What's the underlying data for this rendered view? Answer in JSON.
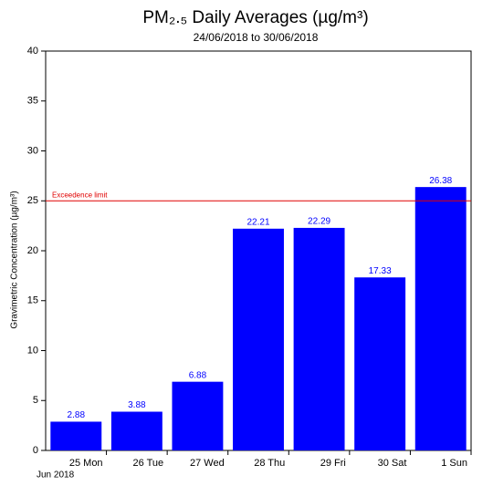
{
  "chart_data": {
    "type": "bar",
    "title": "PM₂.₅ Daily Averages (µg/m³)",
    "subtitle": "24/06/2018 to 30/06/2018",
    "y_label": "Gravimetric Concentration (µg/m³)",
    "categories": [
      null,
      null,
      null,
      null,
      null,
      null,
      null
    ],
    "xtick_labels": [
      "25 Mon",
      "26 Tue",
      "27 Wed",
      "28 Thu",
      "29 Fri",
      "30 Sat",
      "1 Sun"
    ],
    "x_sublabel": "Jun 2018",
    "values": [
      2.88,
      3.88,
      6.88,
      22.21,
      22.29,
      17.33,
      26.38
    ],
    "color": "#0000ff",
    "value_label_color": "#0000ff",
    "ylim": [
      0,
      40
    ],
    "yticks": [
      0,
      5,
      10,
      15,
      20,
      25,
      30,
      35,
      40
    ],
    "threshold": {
      "value": 25,
      "label": "Exceedence limit",
      "color": "#e00000"
    }
  }
}
